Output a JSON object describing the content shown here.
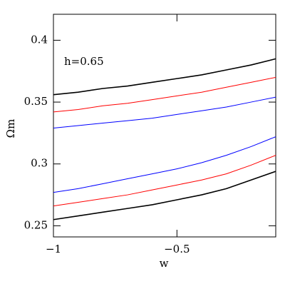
{
  "chart_data": {
    "type": "line",
    "xlabel": "w",
    "ylabel": "Ωm",
    "annotation": "h=0.65",
    "x": [
      -1,
      -0.9,
      -0.8,
      -0.7,
      -0.6,
      -0.5,
      -0.4,
      -0.3,
      -0.2,
      -0.1
    ],
    "series": [
      {
        "color": "#000000",
        "values": [
          0.356,
          0.358,
          0.361,
          0.363,
          0.366,
          0.369,
          0.372,
          0.376,
          0.38,
          0.385
        ]
      },
      {
        "color": "#ff0000",
        "values": [
          0.342,
          0.344,
          0.347,
          0.349,
          0.352,
          0.355,
          0.358,
          0.362,
          0.366,
          0.37
        ]
      },
      {
        "color": "#0000ff",
        "values": [
          0.329,
          0.331,
          0.333,
          0.335,
          0.337,
          0.34,
          0.343,
          0.346,
          0.35,
          0.354
        ]
      },
      {
        "color": "#0000ff",
        "values": [
          0.277,
          0.28,
          0.284,
          0.288,
          0.292,
          0.296,
          0.301,
          0.307,
          0.314,
          0.322
        ]
      },
      {
        "color": "#ff0000",
        "values": [
          0.266,
          0.269,
          0.272,
          0.275,
          0.279,
          0.283,
          0.287,
          0.292,
          0.299,
          0.307
        ]
      },
      {
        "color": "#000000",
        "values": [
          0.255,
          0.258,
          0.261,
          0.264,
          0.267,
          0.271,
          0.275,
          0.28,
          0.287,
          0.294
        ]
      }
    ],
    "xlim": [
      -1,
      -0.1
    ],
    "xticks": [
      {
        "value": -1,
        "label": "−1"
      },
      {
        "value": -0.5,
        "label": "−0.5"
      }
    ],
    "ylim": [
      0.241,
      0.421
    ],
    "yticks": [
      0.25,
      0.3,
      0.35,
      0.4
    ]
  }
}
